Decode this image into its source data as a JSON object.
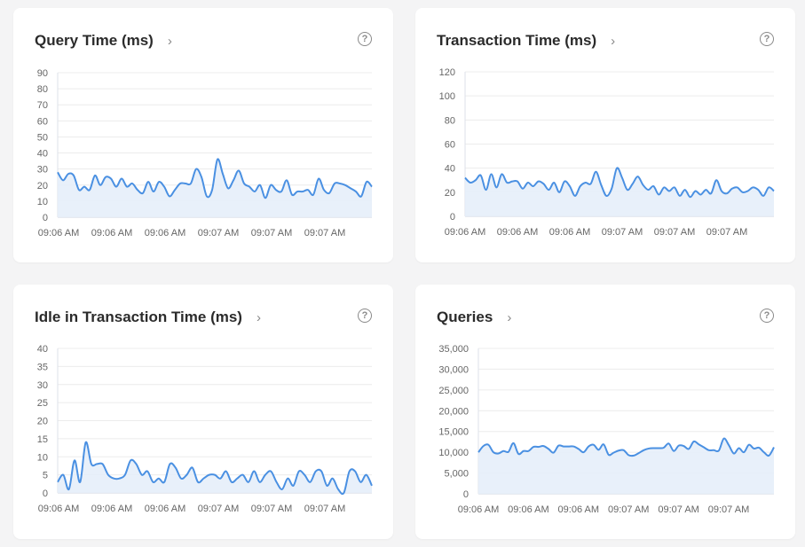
{
  "colors": {
    "line": "#4a90e2",
    "fill": "#e6eefa",
    "grid": "#ececec"
  },
  "cards": [
    {
      "title": "Query Time (ms)",
      "chevron": "›",
      "help": "?"
    },
    {
      "title": "Transaction Time (ms)",
      "chevron": "›",
      "help": "?"
    },
    {
      "title": "Idle in Transaction Time (ms)",
      "chevron": "›",
      "help": "?"
    },
    {
      "title": "Queries",
      "chevron": "›",
      "help": "?"
    }
  ],
  "chart_data": [
    {
      "type": "area",
      "ylim": [
        0,
        90
      ],
      "yticks": [
        "0",
        "10",
        "20",
        "30",
        "40",
        "50",
        "60",
        "70",
        "80",
        "90"
      ],
      "ytick_values": [
        0,
        10,
        20,
        30,
        40,
        50,
        60,
        70,
        80,
        90
      ],
      "xticks": [
        "09:06 AM",
        "09:06 AM",
        "09:06 AM",
        "09:07 AM",
        "09:07 AM",
        "09:07 AM"
      ],
      "grid": true,
      "values": [
        28,
        23,
        27,
        26,
        17,
        19,
        17,
        26,
        20,
        25,
        24,
        19,
        24,
        19,
        21,
        17,
        15,
        22,
        16,
        22,
        19,
        13,
        17,
        21,
        21,
        21,
        30,
        25,
        13,
        17,
        36,
        27,
        18,
        23,
        29,
        21,
        19,
        16,
        20,
        12,
        20,
        17,
        16,
        23,
        14,
        16,
        16,
        17,
        14,
        24,
        17,
        15,
        21,
        21,
        20,
        18,
        16,
        13,
        22,
        19
      ]
    },
    {
      "type": "area",
      "ylim": [
        0,
        120
      ],
      "yticks": [
        "0",
        "20",
        "40",
        "60",
        "80",
        "100",
        "120"
      ],
      "ytick_values": [
        0,
        20,
        40,
        60,
        80,
        100,
        120
      ],
      "xticks": [
        "09:06 AM",
        "09:06 AM",
        "09:06 AM",
        "09:07 AM",
        "09:07 AM",
        "09:07 AM"
      ],
      "grid": true,
      "values": [
        32,
        28,
        30,
        34,
        22,
        35,
        24,
        35,
        28,
        29,
        29,
        23,
        28,
        25,
        29,
        27,
        22,
        28,
        20,
        29,
        25,
        17,
        25,
        28,
        27,
        37,
        26,
        17,
        23,
        40,
        32,
        22,
        27,
        33,
        26,
        22,
        25,
        18,
        24,
        21,
        24,
        17,
        22,
        16,
        21,
        18,
        22,
        19,
        30,
        21,
        19,
        23,
        24,
        20,
        21,
        24,
        22,
        17,
        24,
        21
      ]
    },
    {
      "type": "area",
      "ylim": [
        0,
        40
      ],
      "yticks": [
        "0",
        "5",
        "10",
        "15",
        "20",
        "25",
        "30",
        "35",
        "40"
      ],
      "ytick_values": [
        0,
        5,
        10,
        15,
        20,
        25,
        30,
        35,
        40
      ],
      "xticks": [
        "09:06 AM",
        "09:06 AM",
        "09:06 AM",
        "09:07 AM",
        "09:07 AM",
        "09:07 AM"
      ],
      "grid": true,
      "values": [
        3,
        5,
        1,
        9,
        3,
        14,
        8,
        8,
        8,
        5,
        4,
        4,
        5,
        9,
        8,
        5,
        6,
        3,
        4,
        3,
        8,
        7,
        4,
        5,
        7,
        3,
        4,
        5,
        5,
        4,
        6,
        3,
        4,
        5,
        3,
        6,
        3,
        5,
        6,
        3,
        1,
        4,
        2,
        6,
        5,
        3,
        6,
        6,
        2,
        4,
        1,
        0,
        6,
        6,
        3,
        5,
        2
      ]
    },
    {
      "type": "area",
      "ylim": [
        0,
        35000
      ],
      "yticks": [
        "0",
        "5,000",
        "10,000",
        "15,000",
        "20,000",
        "25,000",
        "30,000",
        "35,000"
      ],
      "ytick_values": [
        0,
        5000,
        10000,
        15000,
        20000,
        25000,
        30000,
        35000
      ],
      "xticks": [
        "09:06 AM",
        "09:06 AM",
        "09:06 AM",
        "09:07 AM",
        "09:07 AM",
        "09:07 AM"
      ],
      "grid": true,
      "values": [
        10000,
        11500,
        11800,
        10000,
        9700,
        10300,
        10100,
        12200,
        9600,
        10300,
        10300,
        11300,
        11300,
        11500,
        10800,
        9900,
        11600,
        11400,
        11400,
        11400,
        10800,
        10000,
        11400,
        11800,
        10600,
        11900,
        9400,
        9900,
        10400,
        10500,
        9300,
        9200,
        9800,
        10500,
        10900,
        11000,
        11000,
        11100,
        12100,
        10300,
        11600,
        11500,
        10800,
        12600,
        11900,
        11200,
        10500,
        10500,
        10400,
        13300,
        11700,
        9700,
        11000,
        10000,
        11800,
        10900,
        11100,
        10000,
        9200,
        11200
      ]
    }
  ]
}
